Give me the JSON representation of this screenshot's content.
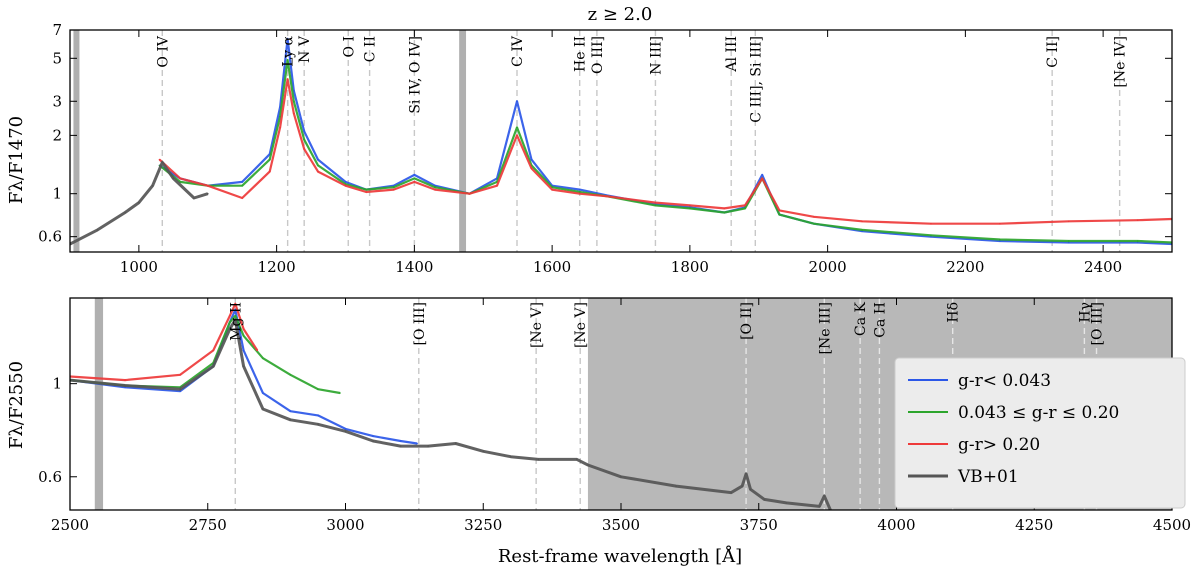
{
  "chart_data": [
    {
      "type": "line",
      "title": "z ≥ 2.0",
      "ylabel": "Fλ/F1470",
      "xlabel": "",
      "xlim": [
        900,
        2500
      ],
      "ylim": [
        0.5,
        7
      ],
      "yscale": "log",
      "xticks": [
        1000,
        1200,
        1400,
        1600,
        1800,
        2000,
        2200,
        2400
      ],
      "yticks": [
        0.6,
        1,
        2,
        3,
        5,
        7
      ],
      "masked_regions": [
        [
          905,
          912
        ],
        [
          1465,
          1475
        ]
      ],
      "emission_lines": [
        {
          "label": "O IV",
          "wave": 1034
        },
        {
          "label": "Ly α",
          "wave": 1216
        },
        {
          "label": "N V",
          "wave": 1240
        },
        {
          "label": "O I",
          "wave": 1304
        },
        {
          "label": "C II",
          "wave": 1335
        },
        {
          "label": "Si IV, O IV]",
          "wave": 1400
        },
        {
          "label": "C IV",
          "wave": 1549
        },
        {
          "label": "He II",
          "wave": 1640
        },
        {
          "label": "O III]",
          "wave": 1665
        },
        {
          "label": "N III]",
          "wave": 1750
        },
        {
          "label": "Al III",
          "wave": 1860
        },
        {
          "label": "C III], Si III]",
          "wave": 1895
        },
        {
          "label": "C II]",
          "wave": 2326
        },
        {
          "label": "[Ne IV]",
          "wave": 2424
        }
      ],
      "series": [
        {
          "name": "g-r< 0.043",
          "color": "#2b57e8",
          "x": [
            1030,
            1060,
            1100,
            1150,
            1190,
            1205,
            1216,
            1225,
            1240,
            1260,
            1300,
            1330,
            1370,
            1400,
            1430,
            1480,
            1520,
            1549,
            1570,
            1600,
            1640,
            1680,
            1750,
            1800,
            1850,
            1880,
            1905,
            1930,
            1980,
            2050,
            2150,
            2250,
            2350,
            2450,
            2500
          ],
          "values": [
            1.4,
            1.2,
            1.1,
            1.15,
            1.6,
            2.8,
            6.3,
            3.4,
            2.1,
            1.5,
            1.15,
            1.05,
            1.1,
            1.25,
            1.1,
            1.0,
            1.2,
            3.0,
            1.5,
            1.1,
            1.05,
            0.98,
            0.88,
            0.85,
            0.8,
            0.85,
            1.25,
            0.78,
            0.7,
            0.64,
            0.6,
            0.57,
            0.56,
            0.56,
            0.55
          ]
        },
        {
          "name": "0.043 ≤ g-r ≤ 0.20",
          "color": "#2ca52c",
          "x": [
            1030,
            1060,
            1100,
            1150,
            1190,
            1205,
            1216,
            1225,
            1240,
            1260,
            1300,
            1330,
            1370,
            1400,
            1430,
            1480,
            1520,
            1549,
            1570,
            1600,
            1640,
            1680,
            1750,
            1800,
            1850,
            1880,
            1905,
            1930,
            1980,
            2050,
            2150,
            2250,
            2350,
            2450,
            2500
          ],
          "values": [
            1.4,
            1.15,
            1.1,
            1.1,
            1.5,
            2.5,
            4.9,
            3.0,
            1.9,
            1.4,
            1.12,
            1.05,
            1.08,
            1.2,
            1.08,
            1.0,
            1.15,
            2.2,
            1.4,
            1.08,
            1.02,
            0.97,
            0.87,
            0.84,
            0.8,
            0.84,
            1.2,
            0.78,
            0.7,
            0.65,
            0.61,
            0.58,
            0.57,
            0.57,
            0.56
          ]
        },
        {
          "name": "g-r> 0.20",
          "color": "#ee3a3a",
          "x": [
            1030,
            1060,
            1100,
            1150,
            1190,
            1205,
            1216,
            1225,
            1240,
            1260,
            1300,
            1330,
            1370,
            1400,
            1430,
            1480,
            1520,
            1549,
            1570,
            1600,
            1640,
            1680,
            1750,
            1800,
            1850,
            1880,
            1905,
            1930,
            1980,
            2050,
            2150,
            2250,
            2350,
            2450,
            2500
          ],
          "values": [
            1.5,
            1.2,
            1.1,
            0.95,
            1.3,
            2.2,
            3.9,
            2.6,
            1.7,
            1.3,
            1.1,
            1.02,
            1.05,
            1.15,
            1.05,
            1.0,
            1.1,
            2.0,
            1.35,
            1.05,
            1.0,
            0.97,
            0.9,
            0.87,
            0.84,
            0.87,
            1.2,
            0.82,
            0.76,
            0.72,
            0.7,
            0.7,
            0.72,
            0.73,
            0.74
          ]
        },
        {
          "name": "VB+01",
          "color": "#555555",
          "x": [
            900,
            940,
            980,
            1000,
            1020,
            1034,
            1050,
            1080,
            1100
          ],
          "values": [
            0.55,
            0.65,
            0.8,
            0.9,
            1.1,
            1.45,
            1.2,
            0.95,
            1.0
          ]
        }
      ]
    },
    {
      "type": "line",
      "title": "",
      "ylabel": "Fλ/F2550",
      "xlabel": "Rest-frame wavelength [Å]",
      "xlim": [
        2500,
        4500
      ],
      "ylim": [
        0.5,
        1.6
      ],
      "yscale": "log",
      "xticks": [
        2500,
        2750,
        3000,
        3250,
        3500,
        3750,
        4000,
        4250,
        4500
      ],
      "yticks": [
        0.6,
        1
      ],
      "shaded_region": [
        3440,
        4500
      ],
      "masked_regions": [
        [
          2545,
          2560
        ]
      ],
      "emission_lines": [
        {
          "label": "Mg II",
          "wave": 2800
        },
        {
          "label": "[O III]",
          "wave": 3133
        },
        {
          "label": "[Ne V]",
          "wave": 3346
        },
        {
          "label": "[Ne V]",
          "wave": 3426
        },
        {
          "label": "[O II]",
          "wave": 3727
        },
        {
          "label": "[Ne III]",
          "wave": 3869
        },
        {
          "label": "Ca K",
          "wave": 3934
        },
        {
          "label": "Ca H",
          "wave": 3969
        },
        {
          "label": "Hδ",
          "wave": 4102
        },
        {
          "label": "Hγ",
          "wave": 4341
        },
        {
          "label": "[O III]",
          "wave": 4363
        }
      ],
      "series": [
        {
          "name": "g-r< 0.043",
          "color": "#2b57e8",
          "x": [
            2500,
            2600,
            2700,
            2760,
            2790,
            2800,
            2815,
            2850,
            2900,
            2950,
            3000,
            3050,
            3100,
            3130
          ],
          "values": [
            1.02,
            0.98,
            0.96,
            1.1,
            1.4,
            1.5,
            1.2,
            0.95,
            0.86,
            0.84,
            0.78,
            0.75,
            0.73,
            0.72
          ]
        },
        {
          "name": "0.043 ≤ g-r ≤ 0.20",
          "color": "#2ca52c",
          "x": [
            2500,
            2600,
            2700,
            2760,
            2790,
            2800,
            2815,
            2850,
            2900,
            2950,
            2990
          ],
          "values": [
            1.02,
            0.99,
            0.98,
            1.12,
            1.4,
            1.45,
            1.3,
            1.15,
            1.05,
            0.97,
            0.95
          ]
        },
        {
          "name": "g-r> 0.20",
          "color": "#ee3a3a",
          "x": [
            2500,
            2600,
            2700,
            2760,
            2790,
            2800,
            2815,
            2840
          ],
          "values": [
            1.04,
            1.02,
            1.05,
            1.2,
            1.45,
            1.55,
            1.35,
            1.2
          ]
        },
        {
          "name": "VB+01",
          "color": "#555555",
          "x": [
            2500,
            2600,
            2700,
            2760,
            2790,
            2800,
            2815,
            2850,
            2900,
            2950,
            3000,
            3050,
            3100,
            3150,
            3200,
            3250,
            3300,
            3350,
            3420,
            3440,
            3500,
            3600,
            3700,
            3720,
            3727,
            3735,
            3760,
            3800,
            3860,
            3869,
            3880
          ],
          "values": [
            1.02,
            0.99,
            0.97,
            1.1,
            1.35,
            1.42,
            1.1,
            0.87,
            0.82,
            0.8,
            0.77,
            0.73,
            0.71,
            0.71,
            0.72,
            0.69,
            0.67,
            0.66,
            0.66,
            0.64,
            0.6,
            0.57,
            0.55,
            0.57,
            0.61,
            0.56,
            0.53,
            0.52,
            0.51,
            0.54,
            0.5
          ]
        }
      ]
    }
  ],
  "legend": {
    "position": "lower-right",
    "entries": [
      {
        "label": "g-r< 0.043",
        "color": "#2b57e8"
      },
      {
        "label": "0.043 ≤ g-r ≤ 0.20",
        "color": "#2ca52c"
      },
      {
        "label": "g-r> 0.20",
        "color": "#ee3a3a"
      },
      {
        "label": "VB+01",
        "color": "#555555"
      }
    ]
  }
}
